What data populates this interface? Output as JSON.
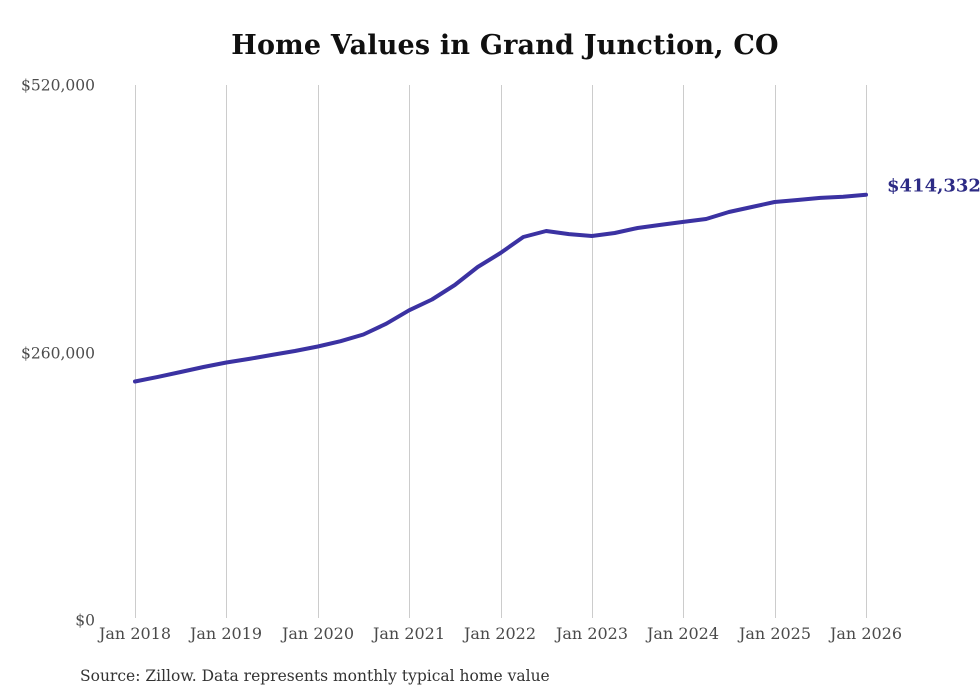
{
  "title": "Home Values in Grand Junction, CO",
  "source_note": "Source: Zillow. Data represents monthly typical home value",
  "end_label": "$414,332",
  "colors": {
    "line": "#3b32a2",
    "end_label": "#2d2b85",
    "grid": "#cccccc",
    "title": "#101010",
    "axis_text": "#4a4a4a",
    "background": "#ffffff"
  },
  "chart_data": {
    "type": "line",
    "title": "Home Values in Grand Junction, CO",
    "xlabel": "",
    "ylabel": "",
    "ylim": [
      0,
      520000
    ],
    "grid": "vertical-only",
    "legend": "none",
    "y_tick_labels": [
      "$0",
      "$260,000",
      "$520,000"
    ],
    "y_tick_values": [
      0,
      260000,
      520000
    ],
    "x_tick_labels": [
      "Jan 2018",
      "Jan 2019",
      "Jan 2020",
      "Jan 2021",
      "Jan 2022",
      "Jan 2023",
      "Jan 2024",
      "Jan 2025",
      "Jan 2026"
    ],
    "end_annotation": {
      "text": "$414,332",
      "value": 414332,
      "date": "2026-01"
    },
    "series": [
      {
        "name": "Monthly typical home value",
        "points": [
          {
            "date": "2018-01",
            "value": 232800
          },
          {
            "date": "2018-04",
            "value": 237300
          },
          {
            "date": "2018-07",
            "value": 242000
          },
          {
            "date": "2018-10",
            "value": 246900
          },
          {
            "date": "2019-01",
            "value": 251300
          },
          {
            "date": "2019-04",
            "value": 254800
          },
          {
            "date": "2019-07",
            "value": 258600
          },
          {
            "date": "2019-10",
            "value": 262400
          },
          {
            "date": "2020-01",
            "value": 266800
          },
          {
            "date": "2020-04",
            "value": 272000
          },
          {
            "date": "2020-07",
            "value": 278500
          },
          {
            "date": "2020-10",
            "value": 289000
          },
          {
            "date": "2021-01",
            "value": 302000
          },
          {
            "date": "2021-04",
            "value": 312500
          },
          {
            "date": "2021-07",
            "value": 326600
          },
          {
            "date": "2021-10",
            "value": 344100
          },
          {
            "date": "2022-01",
            "value": 357700
          },
          {
            "date": "2022-04",
            "value": 373200
          },
          {
            "date": "2022-07",
            "value": 379100
          },
          {
            "date": "2022-10",
            "value": 376100
          },
          {
            "date": "2023-01",
            "value": 374200
          },
          {
            "date": "2023-04",
            "value": 377100
          },
          {
            "date": "2023-07",
            "value": 382000
          },
          {
            "date": "2023-10",
            "value": 385000
          },
          {
            "date": "2024-01",
            "value": 387900
          },
          {
            "date": "2024-04",
            "value": 390700
          },
          {
            "date": "2024-07",
            "value": 397500
          },
          {
            "date": "2024-10",
            "value": 402400
          },
          {
            "date": "2025-01",
            "value": 407300
          },
          {
            "date": "2025-04",
            "value": 409200
          },
          {
            "date": "2025-07",
            "value": 411200
          },
          {
            "date": "2025-10",
            "value": 412400
          },
          {
            "date": "2026-01",
            "value": 414332
          }
        ]
      }
    ]
  }
}
